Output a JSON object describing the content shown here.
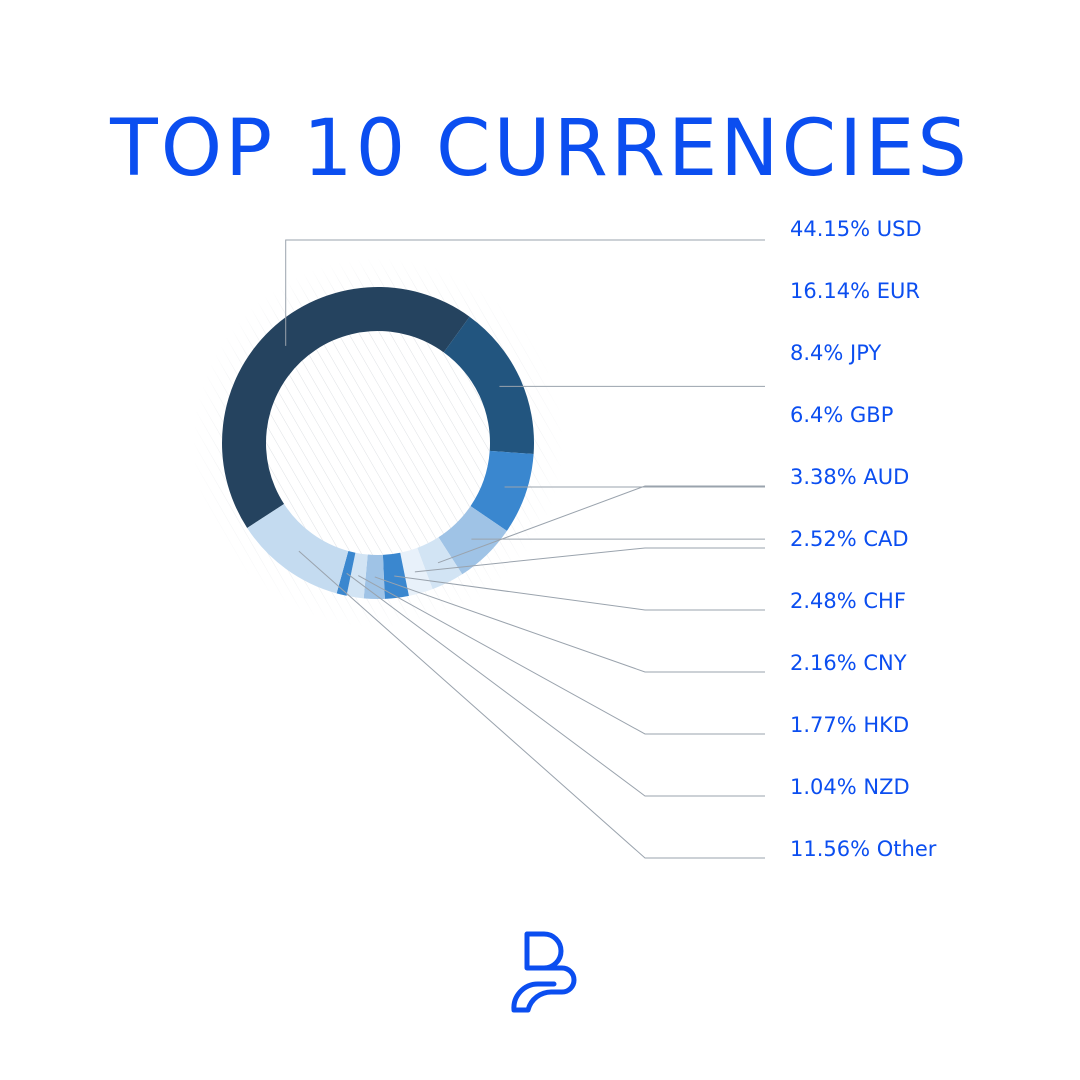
{
  "title": "TOP 10 CURRENCIES",
  "colors": {
    "title": "#0b4ef0",
    "label": "#0b4ef0",
    "leader": "#9aa3ad"
  },
  "logo": {
    "icon": "brand-logo-icon"
  },
  "chart_data": {
    "type": "pie",
    "style": "donut",
    "title": "TOP 10 CURRENCIES",
    "unit": "%",
    "slices": [
      {
        "label": "USD",
        "value": 44.15,
        "display": "44.15% USD",
        "color": "#25435f"
      },
      {
        "label": "EUR",
        "value": 16.14,
        "display": "16.14% EUR",
        "color": "#22557f"
      },
      {
        "label": "JPY",
        "value": 8.4,
        "display": "8.4% JPY",
        "color": "#3a87cf"
      },
      {
        "label": "GBP",
        "value": 6.4,
        "display": "6.4% GBP",
        "color": "#9fc3e6"
      },
      {
        "label": "AUD",
        "value": 3.38,
        "display": "3.38% AUD",
        "color": "#d2e4f4"
      },
      {
        "label": "CAD",
        "value": 2.52,
        "display": "2.52% CAD",
        "color": "#e8f1fa"
      },
      {
        "label": "CHF",
        "value": 2.48,
        "display": "2.48% CHF",
        "color": "#3a87cf"
      },
      {
        "label": "CNY",
        "value": 2.16,
        "display": "2.16% CNY",
        "color": "#9fc3e6"
      },
      {
        "label": "HKD",
        "value": 1.77,
        "display": "1.77% HKD",
        "color": "#d2e4f4"
      },
      {
        "label": "NZD",
        "value": 1.04,
        "display": "1.04% NZD",
        "color": "#3a87cf"
      },
      {
        "label": "Other",
        "value": 11.56,
        "display": "11.56% Other",
        "color": "#c4dbf0"
      }
    ]
  }
}
